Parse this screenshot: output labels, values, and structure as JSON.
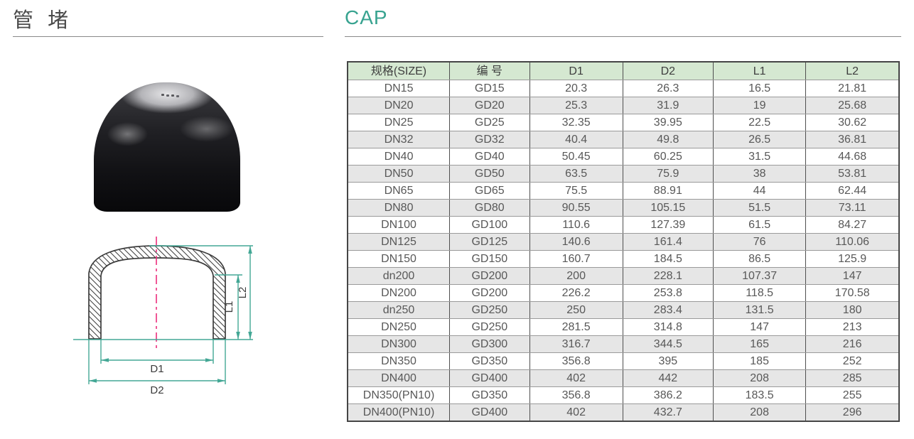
{
  "page": {
    "title_zh": "管 堵",
    "title_en": "CAP",
    "accent_color": "#38a390"
  },
  "drawing": {
    "labels": {
      "d1": "D1",
      "d2": "D2",
      "l1": "L1",
      "l2": "L2"
    },
    "dim_color": "#43a795",
    "centerline_color": "#ec2f7d",
    "outline_color": "#3c3c3c"
  },
  "table": {
    "header_bg": "#d5e8d1",
    "alt_row_bg": "#e6e6e6",
    "columns": [
      "规格(SIZE)",
      "编 号",
      "D1",
      "D2",
      "L1",
      "L2"
    ],
    "rows": [
      [
        "DN15",
        "GD15",
        "20.3",
        "26.3",
        "16.5",
        "21.81"
      ],
      [
        "DN20",
        "GD20",
        "25.3",
        "31.9",
        "19",
        "25.68"
      ],
      [
        "DN25",
        "GD25",
        "32.35",
        "39.95",
        "22.5",
        "30.62"
      ],
      [
        "DN32",
        "GD32",
        "40.4",
        "49.8",
        "26.5",
        "36.81"
      ],
      [
        "DN40",
        "GD40",
        "50.45",
        "60.25",
        "31.5",
        "44.68"
      ],
      [
        "DN50",
        "GD50",
        "63.5",
        "75.9",
        "38",
        "53.81"
      ],
      [
        "DN65",
        "GD65",
        "75.5",
        "88.91",
        "44",
        "62.44"
      ],
      [
        "DN80",
        "GD80",
        "90.55",
        "105.15",
        "51.5",
        "73.11"
      ],
      [
        "DN100",
        "GD100",
        "110.6",
        "127.39",
        "61.5",
        "84.27"
      ],
      [
        "DN125",
        "GD125",
        "140.6",
        "161.4",
        "76",
        "110.06"
      ],
      [
        "DN150",
        "GD150",
        "160.7",
        "184.5",
        "86.5",
        "125.9"
      ],
      [
        "dn200",
        "GD200",
        "200",
        "228.1",
        "107.37",
        "147"
      ],
      [
        "DN200",
        "GD200",
        "226.2",
        "253.8",
        "118.5",
        "170.58"
      ],
      [
        "dn250",
        "GD250",
        "250",
        "283.4",
        "131.5",
        "180"
      ],
      [
        "DN250",
        "GD250",
        "281.5",
        "314.8",
        "147",
        "213"
      ],
      [
        "DN300",
        "GD300",
        "316.7",
        "344.5",
        "165",
        "216"
      ],
      [
        "DN350",
        "GD350",
        "356.8",
        "395",
        "185",
        "252"
      ],
      [
        "DN400",
        "GD400",
        "402",
        "442",
        "208",
        "285"
      ],
      [
        "DN350(PN10)",
        "GD350",
        "356.8",
        "386.2",
        "183.5",
        "255"
      ],
      [
        "DN400(PN10)",
        "GD400",
        "402",
        "432.7",
        "208",
        "296"
      ]
    ]
  }
}
